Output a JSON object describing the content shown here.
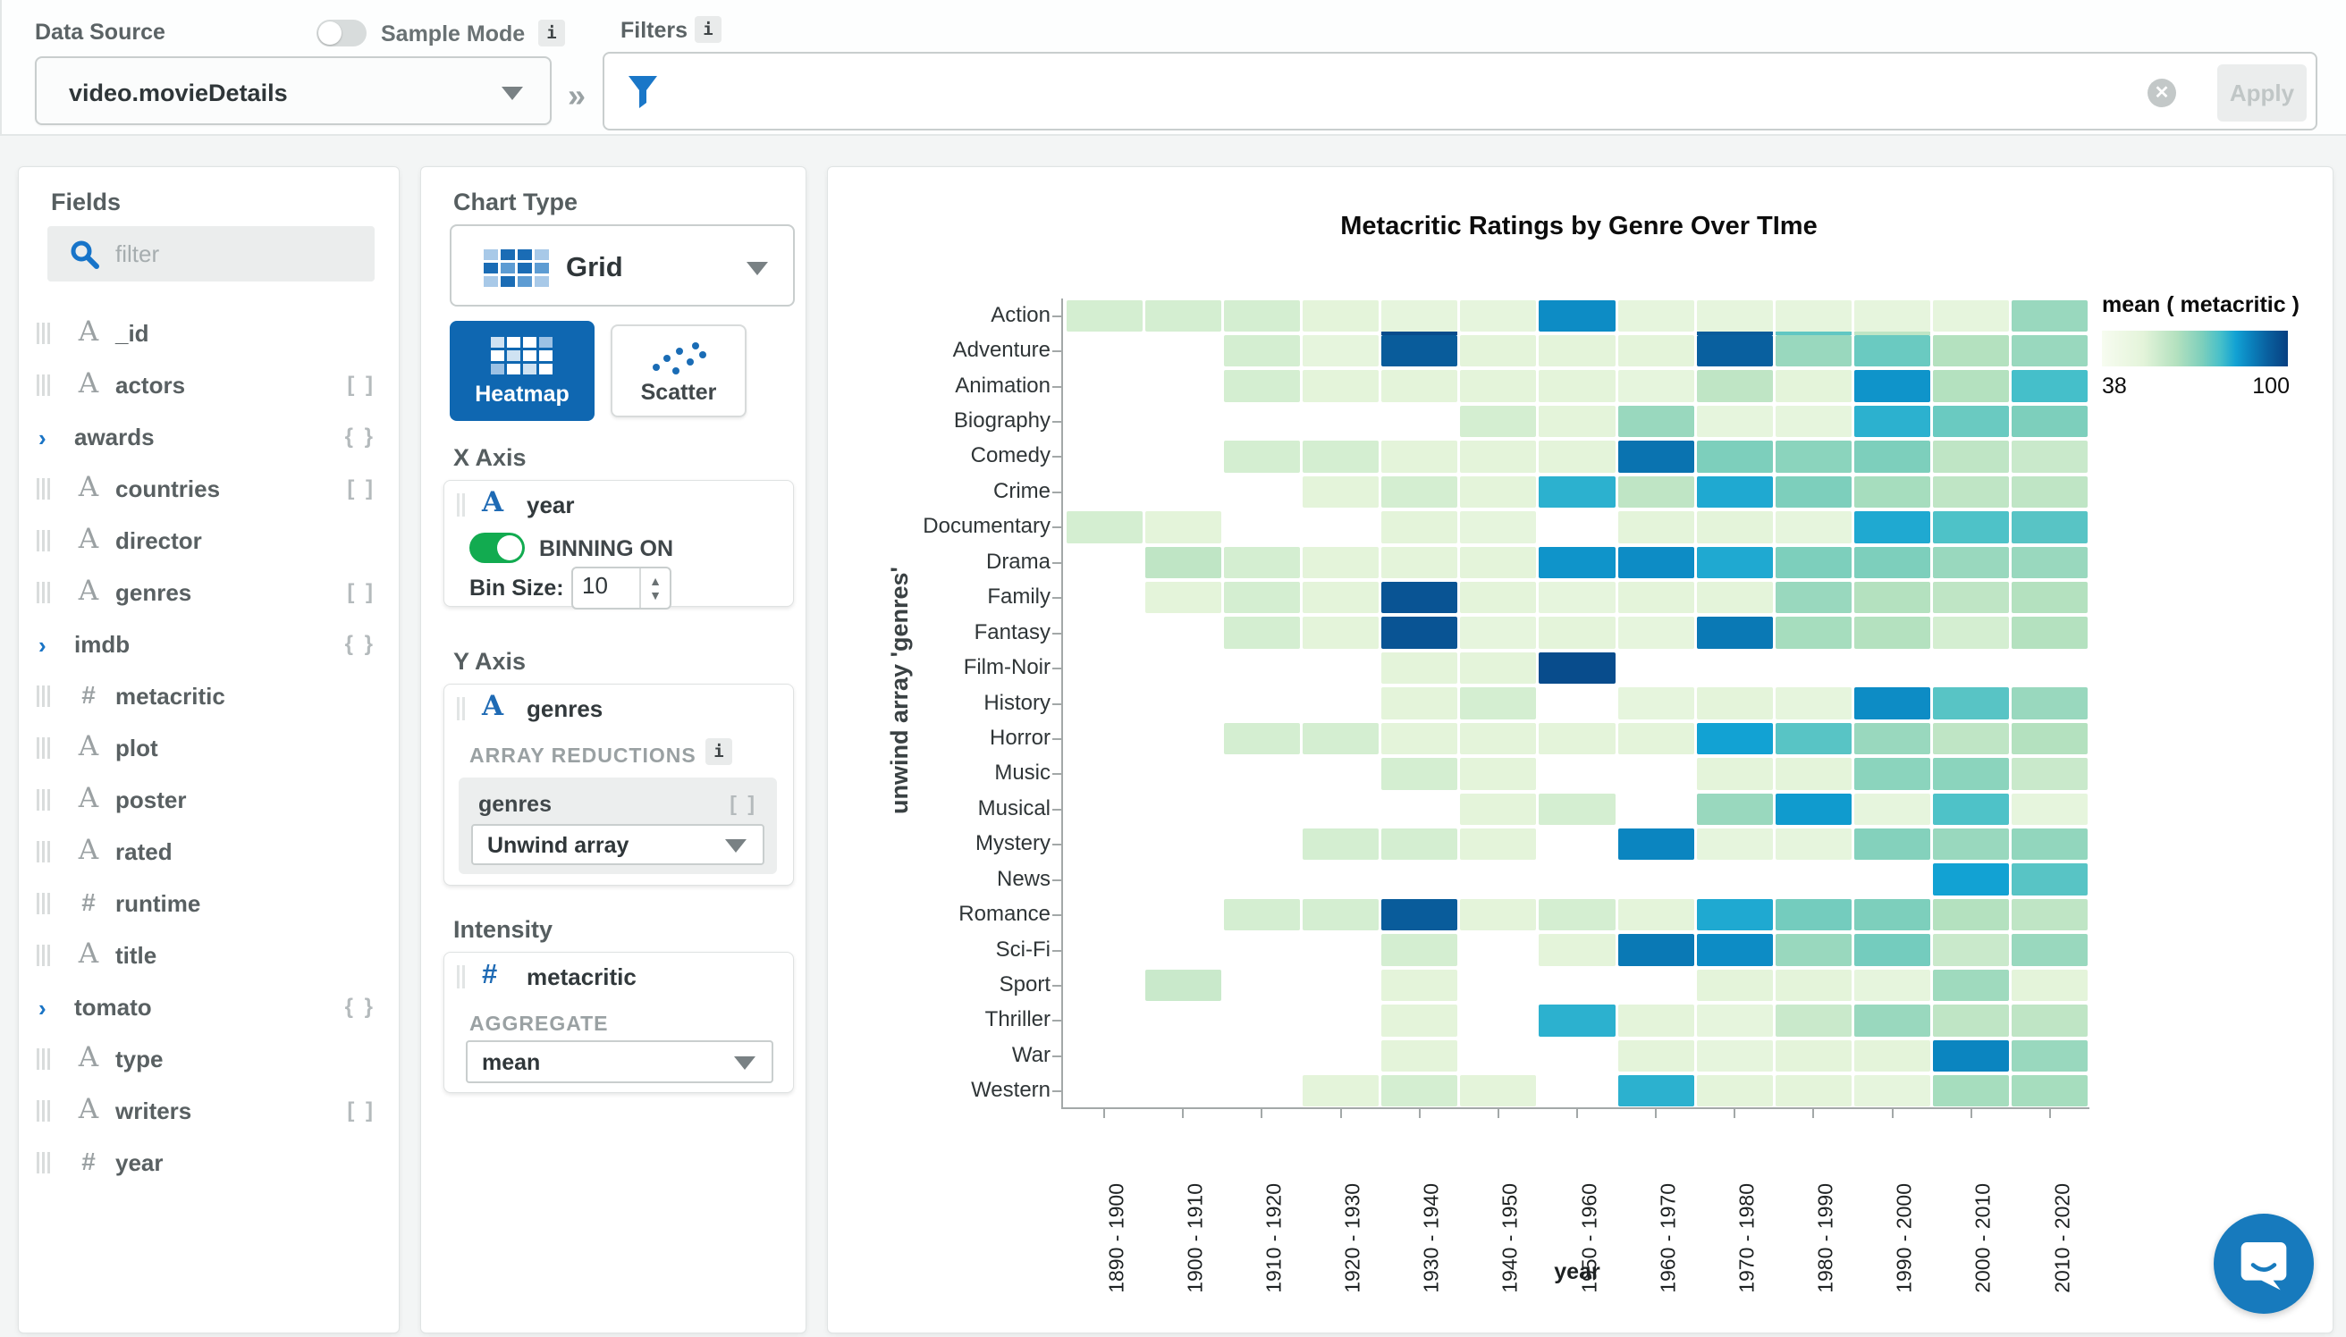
{
  "topbar": {
    "data_source_label": "Data Source",
    "sample_mode_label": "Sample Mode",
    "info_icon": "i",
    "source_value": "video.movieDetails",
    "collapse_icon": "»",
    "filters_label": "Filters",
    "filter_value": "",
    "apply_label": "Apply"
  },
  "fields_panel": {
    "title": "Fields",
    "filter_placeholder": "filter",
    "items": [
      {
        "name": "_id",
        "type": "string"
      },
      {
        "name": "actors",
        "type": "string",
        "badge": "[ ]"
      },
      {
        "name": "awards",
        "type": "object",
        "badge": "{ }"
      },
      {
        "name": "countries",
        "type": "string",
        "badge": "[ ]"
      },
      {
        "name": "director",
        "type": "string"
      },
      {
        "name": "genres",
        "type": "string",
        "badge": "[ ]"
      },
      {
        "name": "imdb",
        "type": "object",
        "badge": "{ }"
      },
      {
        "name": "metacritic",
        "type": "number"
      },
      {
        "name": "plot",
        "type": "string"
      },
      {
        "name": "poster",
        "type": "string"
      },
      {
        "name": "rated",
        "type": "string"
      },
      {
        "name": "runtime",
        "type": "number"
      },
      {
        "name": "title",
        "type": "string"
      },
      {
        "name": "tomato",
        "type": "object",
        "badge": "{ }"
      },
      {
        "name": "type",
        "type": "string"
      },
      {
        "name": "writers",
        "type": "string",
        "badge": "[ ]"
      },
      {
        "name": "year",
        "type": "number"
      }
    ]
  },
  "encoding_panel": {
    "chart_type_label": "Chart Type",
    "chart_type_value": "Grid",
    "subtype_heatmap": "Heatmap",
    "subtype_scatter": "Scatter",
    "x_axis": {
      "section_label": "X Axis",
      "field": "year",
      "binning_label": "BINNING ON",
      "bin_size_label": "Bin Size:",
      "bin_size_value": "10"
    },
    "y_axis": {
      "section_label": "Y Axis",
      "field": "genres",
      "array_reductions_label": "ARRAY REDUCTIONS",
      "info_icon": "i",
      "reduction_field": "genres",
      "reduction_badge": "[ ]",
      "reduction_value": "Unwind array"
    },
    "intensity": {
      "section_label": "Intensity",
      "field": "metacritic",
      "aggregate_label": "AGGREGATE",
      "aggregate_value": "mean"
    }
  },
  "chart_data": {
    "type": "heatmap",
    "title": "Metacritic Ratings by Genre Over TIme",
    "xlabel": "year",
    "ylabel": "unwind array 'genres'",
    "legend": {
      "title": "mean ( metacritic )",
      "min": 38,
      "max": 100,
      "position": "top-right"
    },
    "grid": false,
    "x_categories": [
      "1890 - 1900",
      "1900 - 1910",
      "1910 - 1920",
      "1920 - 1930",
      "1930 - 1940",
      "1940 - 1950",
      "1950 - 1960",
      "1960 - 1970",
      "1970 - 1980",
      "1980 - 1990",
      "1990 - 2000",
      "2000 - 2010",
      "2010 - 2020"
    ],
    "y_categories": [
      "Action",
      "Adventure",
      "Animation",
      "Biography",
      "Comedy",
      "Crime",
      "Documentary",
      "Drama",
      "Family",
      "Fantasy",
      "Film-Noir",
      "History",
      "Horror",
      "Music",
      "Musical",
      "Mystery",
      "News",
      "Romance",
      "Sci-Fi",
      "Sport",
      "Thriller",
      "War",
      "Western"
    ],
    "values": [
      [
        58,
        58,
        58,
        55,
        53,
        53,
        85,
        53,
        53,
        53,
        53,
        53,
        68
      ],
      [
        null,
        null,
        58,
        53,
        93,
        55,
        55,
        55,
        92,
        68,
        74,
        64,
        68
      ],
      [
        null,
        null,
        58,
        55,
        55,
        55,
        55,
        53,
        62,
        55,
        84,
        64,
        78
      ],
      [
        null,
        null,
        null,
        null,
        null,
        58,
        55,
        68,
        53,
        53,
        80,
        74,
        72
      ],
      [
        null,
        null,
        58,
        58,
        55,
        55,
        55,
        89,
        72,
        70,
        72,
        62,
        60
      ],
      [
        null,
        null,
        null,
        55,
        58,
        55,
        80,
        62,
        81,
        72,
        66,
        62,
        62
      ],
      [
        58,
        55,
        null,
        null,
        55,
        53,
        null,
        55,
        55,
        53,
        81,
        77,
        76
      ],
      [
        null,
        62,
        58,
        55,
        55,
        55,
        84,
        85,
        81,
        72,
        72,
        68,
        68
      ],
      [
        null,
        55,
        58,
        55,
        95,
        55,
        53,
        55,
        55,
        68,
        64,
        62,
        64
      ],
      [
        null,
        null,
        58,
        55,
        95,
        53,
        55,
        53,
        88,
        66,
        64,
        58,
        64
      ],
      [
        null,
        null,
        null,
        null,
        55,
        55,
        97,
        null,
        null,
        null,
        null,
        null,
        null
      ],
      [
        null,
        null,
        null,
        null,
        55,
        58,
        null,
        53,
        55,
        53,
        85,
        76,
        68
      ],
      [
        null,
        null,
        58,
        58,
        55,
        55,
        55,
        55,
        82,
        76,
        68,
        62,
        64
      ],
      [
        null,
        null,
        null,
        null,
        58,
        55,
        null,
        null,
        55,
        55,
        70,
        70,
        60
      ],
      [
        null,
        null,
        null,
        null,
        null,
        55,
        58,
        null,
        68,
        83,
        53,
        77,
        53
      ],
      [
        null,
        null,
        null,
        58,
        58,
        55,
        null,
        86,
        53,
        53,
        71,
        68,
        69
      ],
      [
        null,
        null,
        null,
        null,
        null,
        null,
        null,
        null,
        null,
        null,
        null,
        82,
        76
      ],
      [
        null,
        null,
        58,
        58,
        93,
        55,
        58,
        55,
        81,
        73,
        72,
        64,
        62
      ],
      [
        null,
        null,
        null,
        null,
        58,
        null,
        55,
        88,
        85,
        68,
        73,
        60,
        68
      ],
      [
        null,
        60,
        null,
        null,
        55,
        null,
        null,
        null,
        55,
        55,
        53,
        67,
        55
      ],
      [
        null,
        null,
        null,
        null,
        55,
        null,
        80,
        55,
        53,
        60,
        68,
        62,
        62
      ],
      [
        null,
        null,
        null,
        null,
        55,
        null,
        null,
        55,
        53,
        55,
        55,
        86,
        68
      ],
      [
        null,
        null,
        null,
        55,
        58,
        55,
        null,
        80,
        55,
        55,
        53,
        66,
        66
      ]
    ],
    "thin_row_after": "Action",
    "thin_row_values": [
      null,
      null,
      null,
      null,
      97,
      null,
      null,
      null,
      93,
      75,
      62,
      null,
      null
    ],
    "color_scale_stops": [
      [
        38,
        "#f7fcf0"
      ],
      [
        55,
        "#e4f4da"
      ],
      [
        64,
        "#b4e1bf"
      ],
      [
        72,
        "#7dcfbc"
      ],
      [
        78,
        "#45bfca"
      ],
      [
        82,
        "#12a2d3"
      ],
      [
        86,
        "#0b85c0"
      ],
      [
        92,
        "#09609f"
      ],
      [
        100,
        "#084081"
      ]
    ]
  },
  "colors": {
    "accent_blue": "#0f67b1",
    "icon_blue": "#1a74c5",
    "toggle_green": "#12ab50",
    "panel_heading_gray": "#565e60"
  },
  "chat_button": {
    "icon": "chat-bubble"
  }
}
